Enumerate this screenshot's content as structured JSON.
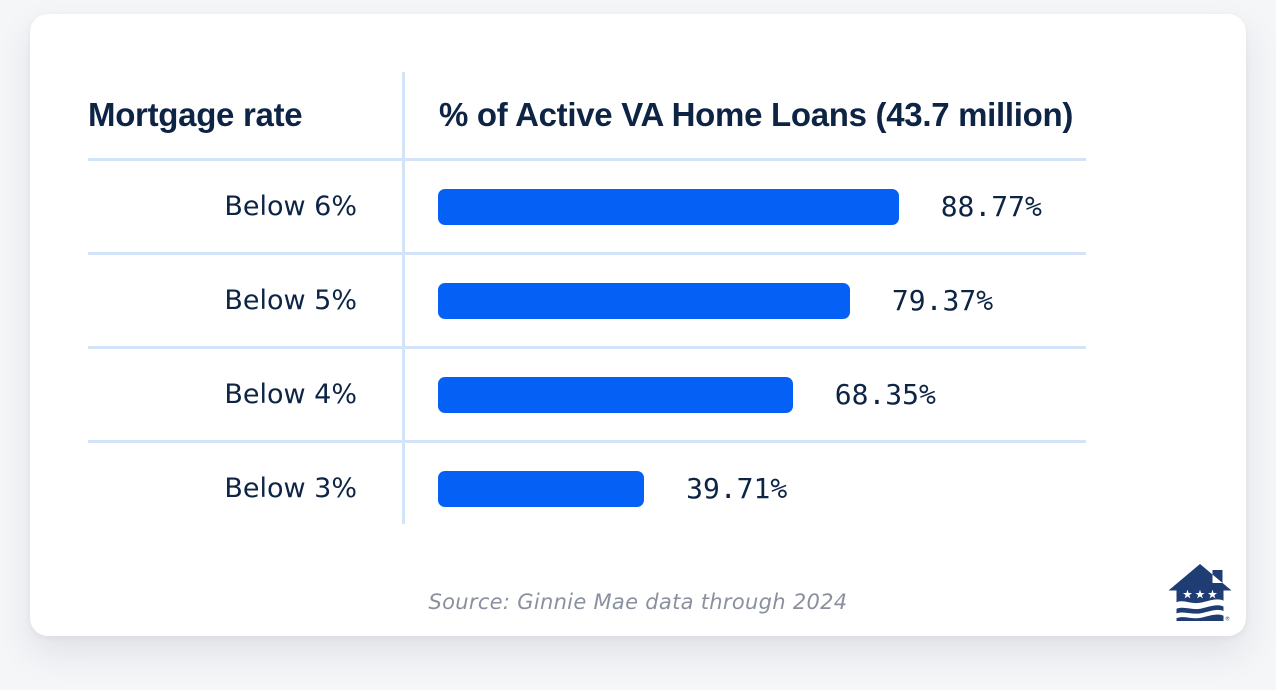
{
  "header": {
    "col1": "Mortgage rate",
    "col2": "% of Active VA Home Loans (43.7 million)"
  },
  "chart_data": {
    "type": "bar",
    "orientation": "horizontal",
    "title": "% of Active VA Home Loans (43.7 million)",
    "category_axis_label": "Mortgage rate",
    "categories": [
      "Below 6%",
      "Below 5%",
      "Below 4%",
      "Below 3%"
    ],
    "values": [
      88.77,
      79.37,
      68.35,
      39.71
    ],
    "value_labels": [
      "88.77%",
      "79.37%",
      "68.35%",
      "39.71%"
    ],
    "total_loans": "43.7 million",
    "xlim": [
      0,
      100
    ],
    "bar_color": "#0560F6",
    "grid": "light-blue row separator lines, vertical divider between label column and bars",
    "legend": "none"
  },
  "footer": {
    "source_text": "Source: Ginnie Mae data through 2024"
  },
  "logo": {
    "icon": "house-stars-flag-logo",
    "registered_mark": "®",
    "color": "#1F3D73"
  },
  "colors": {
    "page_background": "#F5F6F8",
    "card_background": "#FFFFFF",
    "navy_text": "#0D2445",
    "bar_blue": "#0560F6",
    "grid_line": "#D3E3F8",
    "source_gray": "#8A919E",
    "logo_navy": "#1F3D73"
  }
}
